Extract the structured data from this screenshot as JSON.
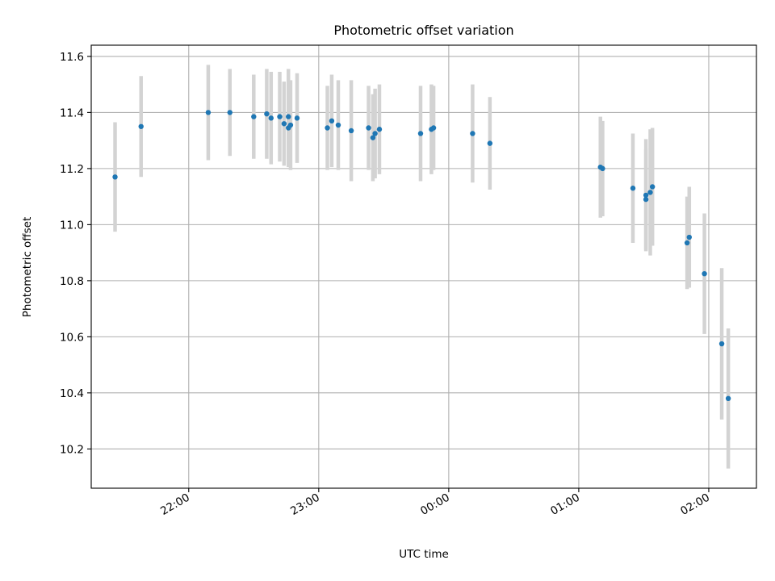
{
  "chart_data": {
    "type": "scatter",
    "title": "Photometric offset variation",
    "xlabel": "UTC time",
    "ylabel": "Photometric offset",
    "x_unit": "UTC time (HH:MM)",
    "xlim": [
      "21:15",
      "02:22"
    ],
    "ylim": [
      10.06,
      11.64
    ],
    "xticks": [
      "22:00",
      "23:00",
      "00:00",
      "01:00",
      "02:00"
    ],
    "yticks": [
      "10.2",
      "10.4",
      "10.6",
      "10.8",
      "11.0",
      "11.2",
      "11.4",
      "11.6"
    ],
    "grid": true,
    "point_color": "#1f77b4",
    "errorbar_color": "#d3d3d3",
    "series": [
      {
        "points": [
          {
            "t": "21:26",
            "y": 11.17,
            "err": 0.195
          },
          {
            "t": "21:38",
            "y": 11.35,
            "err": 0.18
          },
          {
            "t": "22:09",
            "y": 11.4,
            "err": 0.17
          },
          {
            "t": "22:19",
            "y": 11.4,
            "err": 0.155
          },
          {
            "t": "22:30",
            "y": 11.385,
            "err": 0.15
          },
          {
            "t": "22:36",
            "y": 11.395,
            "err": 0.16
          },
          {
            "t": "22:38",
            "y": 11.38,
            "err": 0.165
          },
          {
            "t": "22:42",
            "y": 11.385,
            "err": 0.16
          },
          {
            "t": "22:44",
            "y": 11.36,
            "err": 0.15
          },
          {
            "t": "22:46",
            "y": 11.385,
            "err": 0.17
          },
          {
            "t": "22:46",
            "y": 11.345,
            "err": 0.14
          },
          {
            "t": "22:47",
            "y": 11.355,
            "err": 0.16
          },
          {
            "t": "22:50",
            "y": 11.38,
            "err": 0.16
          },
          {
            "t": "23:04",
            "y": 11.345,
            "err": 0.15
          },
          {
            "t": "23:06",
            "y": 11.37,
            "err": 0.165
          },
          {
            "t": "23:09",
            "y": 11.355,
            "err": 0.16
          },
          {
            "t": "23:15",
            "y": 11.335,
            "err": 0.18
          },
          {
            "t": "23:23",
            "y": 11.345,
            "err": 0.15
          },
          {
            "t": "23:25",
            "y": 11.31,
            "err": 0.155
          },
          {
            "t": "23:26",
            "y": 11.325,
            "err": 0.16
          },
          {
            "t": "23:28",
            "y": 11.34,
            "err": 0.16
          },
          {
            "t": "23:47",
            "y": 11.325,
            "err": 0.17
          },
          {
            "t": "23:52",
            "y": 11.34,
            "err": 0.16
          },
          {
            "t": "23:53",
            "y": 11.345,
            "err": 0.15
          },
          {
            "t": "00:11",
            "y": 11.325,
            "err": 0.175
          },
          {
            "t": "00:19",
            "y": 11.29,
            "err": 0.165
          },
          {
            "t": "01:10",
            "y": 11.205,
            "err": 0.18
          },
          {
            "t": "01:11",
            "y": 11.2,
            "err": 0.17
          },
          {
            "t": "01:25",
            "y": 11.13,
            "err": 0.195
          },
          {
            "t": "01:31",
            "y": 11.105,
            "err": 0.2
          },
          {
            "t": "01:31",
            "y": 11.09,
            "err": 0.18
          },
          {
            "t": "01:33",
            "y": 11.115,
            "err": 0.225
          },
          {
            "t": "01:34",
            "y": 11.135,
            "err": 0.21
          },
          {
            "t": "01:50",
            "y": 10.935,
            "err": 0.165
          },
          {
            "t": "01:51",
            "y": 10.955,
            "err": 0.18
          },
          {
            "t": "01:58",
            "y": 10.825,
            "err": 0.215
          },
          {
            "t": "02:06",
            "y": 10.575,
            "err": 0.27
          },
          {
            "t": "02:09",
            "y": 10.38,
            "err": 0.25
          }
        ]
      }
    ]
  }
}
